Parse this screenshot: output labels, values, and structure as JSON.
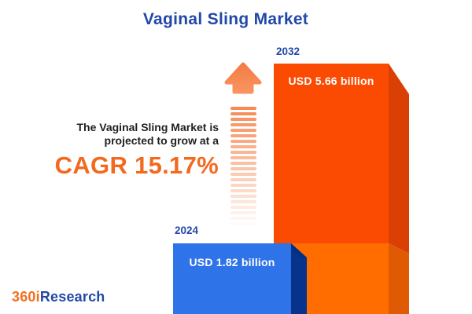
{
  "title": "Vaginal Sling Market",
  "intro": {
    "line1": "The Vaginal Sling Market is",
    "line2": "projected to grow at a",
    "cagr_text": "CAGR 15.17%"
  },
  "chart_data": {
    "type": "bar",
    "title": "Vaginal Sling Market",
    "categories": [
      "2024",
      "2032"
    ],
    "values": [
      1.82,
      5.66
    ],
    "unit": "USD billion",
    "value_labels": [
      "USD 1.82 billion",
      "USD 5.66 billion"
    ],
    "cagr_percent": 15.17,
    "legend": "none",
    "axes": "none",
    "bar_colors": {
      "2024": "#2E73E8",
      "2032": "#FB4A02"
    }
  },
  "bars": [
    {
      "year": "2024",
      "value_label": "USD 1.82 billion"
    },
    {
      "year": "2032",
      "value_label": "USD 5.66 billion"
    }
  ],
  "logo": {
    "prefix": "360i",
    "suffix": "Research"
  },
  "colors": {
    "title_blue": "#2148A8",
    "cagr_orange": "#F3691E",
    "body_text": "#1F1F1F",
    "bar2024_front": "#2E73E8",
    "bar2024_side": "#08338D",
    "bar2032_front_top": "#FB4A02",
    "bar2032_front_bottom": "#FF6C00",
    "bar2032_side_top": "#DA4004",
    "bar2032_side_bottom": "#E05A03",
    "arrow_orange": "#F6854E",
    "background": "#FFFFFF"
  }
}
